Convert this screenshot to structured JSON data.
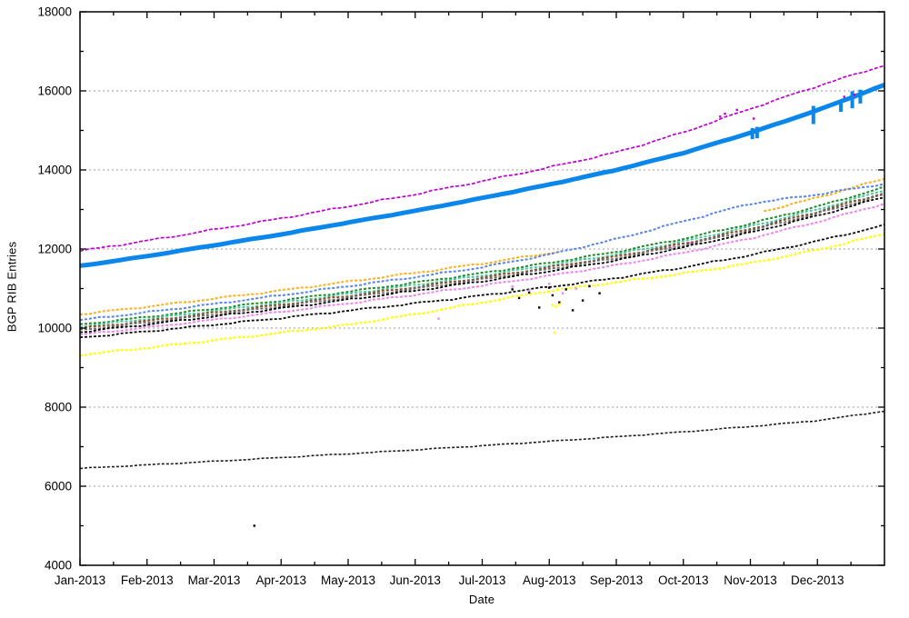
{
  "chart_data": {
    "type": "line",
    "title": "",
    "xlabel": "Date",
    "ylabel": "BGP RIB Entries",
    "x_range_months": [
      0,
      12
    ],
    "x_tick_labels": [
      "Jan-2013",
      "Feb-2013",
      "Mar-2013",
      "Apr-2013",
      "May-2013",
      "Jun-2013",
      "Jul-2013",
      "Aug-2013",
      "Sep-2013",
      "Oct-2013",
      "Nov-2013",
      "Dec-2013"
    ],
    "y_ticks": [
      4000,
      6000,
      8000,
      10000,
      12000,
      14000,
      16000,
      18000
    ],
    "y_tick_labels": [
      "4000",
      "6000",
      "8000",
      "10000",
      "12000",
      "14000",
      "16000",
      "18000"
    ],
    "y_minor_ticks": [
      5000,
      7000,
      9000,
      11000,
      13000,
      15000,
      17000
    ],
    "ylim": [
      4000,
      18000
    ],
    "grid": "horizontal-dashed",
    "grid_color": "#999999",
    "border_color": "#000000",
    "background": "#ffffff",
    "months": [
      0,
      1,
      2,
      3,
      4,
      5,
      6,
      7,
      8,
      9,
      10,
      11,
      12
    ],
    "series": [
      {
        "name": "purple-line",
        "color": "#BE00D0",
        "width": 1.7,
        "dash": "4 2",
        "noise": 1,
        "values": [
          11950,
          12210,
          12490,
          12775,
          13080,
          13385,
          13715,
          14065,
          14445,
          14950,
          15550,
          16120,
          16650
        ]
      },
      {
        "name": "thick-blue-line",
        "color": "#0B86EA",
        "width": 5,
        "dash": "",
        "noise": 0.3,
        "values": [
          11570,
          11820,
          12095,
          12370,
          12670,
          12965,
          13290,
          13630,
          14000,
          14430,
          14940,
          15510,
          16150
        ]
      },
      {
        "name": "orange-line",
        "color": "#FFAE19",
        "width": 2,
        "dash": "3 2",
        "noise": 1,
        "gap": [
          7.3,
          10.15
        ],
        "values": [
          10350,
          10540,
          10745,
          10950,
          11175,
          11395,
          11635,
          11895,
          12170,
          12495,
          12870,
          13300,
          13780
        ]
      },
      {
        "name": "cornflower-blue-line",
        "color": "#5585E8",
        "width": 2,
        "dash": "3 2",
        "noise": 1,
        "values": [
          10200,
          10400,
          10610,
          10830,
          11060,
          11290,
          11540,
          11860,
          12250,
          12700,
          13150,
          13380,
          13650
        ]
      },
      {
        "name": "green-line",
        "color": "#1F8B24",
        "width": 2,
        "dash": "3 2",
        "noise": 1,
        "values": [
          10090,
          10280,
          10490,
          10695,
          10920,
          11150,
          11390,
          11650,
          11930,
          12260,
          12640,
          13075,
          13560
        ]
      },
      {
        "name": "teal-line",
        "color": "#3EC9A7",
        "width": 2,
        "dash": "3 2",
        "noise": 1,
        "values": [
          10040,
          10230,
          10435,
          10640,
          10865,
          11090,
          11330,
          11590,
          11865,
          12190,
          12570,
          13000,
          13480
        ]
      },
      {
        "name": "brown-line",
        "color": "#8B4A21",
        "width": 2,
        "dash": "3 2",
        "noise": 1,
        "values": [
          9990,
          10180,
          10385,
          10590,
          10815,
          11035,
          11275,
          11535,
          11810,
          12135,
          12510,
          12940,
          13420
        ]
      },
      {
        "name": "gray-line",
        "color": "#6B6B6B",
        "width": 2,
        "dash": "3 2",
        "noise": 1,
        "values": [
          9950,
          10140,
          10345,
          10550,
          10775,
          10995,
          11235,
          11495,
          11770,
          12095,
          12470,
          12900,
          13380
        ]
      },
      {
        "name": "black-line-upper",
        "color": "#000000",
        "width": 1.8,
        "dash": "3 2",
        "noise": 1,
        "values": [
          9900,
          10090,
          10295,
          10500,
          10720,
          10945,
          11185,
          11440,
          11715,
          12040,
          12415,
          12840,
          13320
        ]
      },
      {
        "name": "violet-line",
        "color": "#EE82EE",
        "width": 2,
        "dash": "3 2",
        "noise": 1,
        "values": [
          9830,
          10015,
          10210,
          10410,
          10625,
          10845,
          11075,
          11325,
          11590,
          11905,
          12270,
          12685,
          13150
        ]
      },
      {
        "name": "black-line-mid",
        "color": "#0A0A0A",
        "width": 1.8,
        "dash": "3 2",
        "noise": 1,
        "values": [
          9760,
          9915,
          10085,
          10255,
          10440,
          10625,
          10825,
          11040,
          11265,
          11535,
          11845,
          12200,
          12600
        ]
      },
      {
        "name": "yellow-line",
        "color": "#FFFF00",
        "width": 2.2,
        "dash": "3 2",
        "noise": 1,
        "values": [
          9320,
          9500,
          9690,
          9880,
          10080,
          10350,
          10650,
          10940,
          11160,
          11380,
          11640,
          11980,
          12380
        ]
      },
      {
        "name": "black-line-bottom",
        "color": "#1E1E1E",
        "width": 1.6,
        "dash": "3 2",
        "noise": 0.5,
        "values": [
          6450,
          6540,
          6630,
          6725,
          6820,
          6920,
          7025,
          7135,
          7250,
          7375,
          7510,
          7660,
          7900
        ]
      }
    ],
    "spikes": {
      "name": "thick-blue-dips",
      "color": "#0B86EA",
      "width": 4,
      "segments": [
        [
          10.03,
          15060,
          14780
        ],
        [
          10.1,
          15090,
          14800
        ],
        [
          10.94,
          15620,
          15160
        ],
        [
          11.35,
          15760,
          15470
        ],
        [
          11.52,
          15990,
          15560
        ],
        [
          11.64,
          16030,
          15680
        ]
      ]
    },
    "scatter": [
      {
        "name": "black-outliers",
        "color": "#000000",
        "points": [
          [
            6.45,
            10980
          ],
          [
            6.55,
            10760
          ],
          [
            6.7,
            10900
          ],
          [
            6.85,
            10520
          ],
          [
            7.0,
            11020
          ],
          [
            7.05,
            10830
          ],
          [
            7.15,
            10650
          ],
          [
            7.25,
            10980
          ],
          [
            7.35,
            10450
          ],
          [
            7.5,
            10700
          ],
          [
            7.6,
            11060
          ],
          [
            7.75,
            10880
          ],
          [
            2.6,
            5000
          ]
        ]
      },
      {
        "name": "violet-outliers",
        "color": "#EE82EE",
        "points": [
          [
            5.35,
            10240
          ],
          [
            6.45,
            11050
          ],
          [
            6.7,
            10950
          ],
          [
            7.0,
            11120
          ],
          [
            7.2,
            10880
          ],
          [
            7.4,
            11000
          ],
          [
            8.85,
            12050
          ],
          [
            9.1,
            12150
          ]
        ]
      },
      {
        "name": "yellow-outliers",
        "color": "#FFFF00",
        "points": [
          [
            7.05,
            10580
          ],
          [
            7.1,
            10540
          ],
          [
            7.15,
            10600
          ],
          [
            7.08,
            9880
          ]
        ]
      },
      {
        "name": "purple-outliers",
        "color": "#BE00D0",
        "points": [
          [
            9.55,
            15350
          ],
          [
            9.62,
            15420
          ],
          [
            9.8,
            15520
          ],
          [
            10.05,
            15300
          ],
          [
            11.4,
            15850
          ],
          [
            11.55,
            15900
          ]
        ]
      }
    ]
  }
}
